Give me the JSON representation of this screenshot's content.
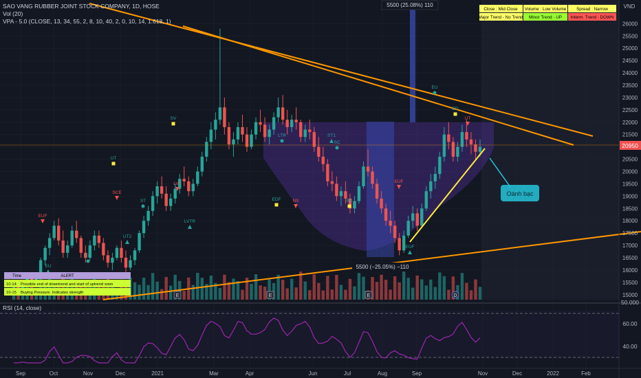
{
  "header": {
    "title": "SAO VANG RUBBER JOINT STOCK COMPANY, 1D, HOSE",
    "vol_label": "Vol (20)",
    "vpa_label": "VPA - 5.0  (CLOSE, 13, 34, 55, 2, 8, 10, 40, 2, 0, 10, 14, 1.618, 1)"
  },
  "currency_label": "VND",
  "price_axis_ticks": [
    "26000",
    "25500",
    "25000",
    "24500",
    "24000",
    "23500",
    "23000",
    "22500",
    "22000",
    "21500",
    "21000",
    "20500",
    "20000",
    "19500",
    "19000",
    "18500",
    "18000",
    "17500",
    "17000",
    "16500",
    "16000",
    "15500",
    "15000"
  ],
  "current_price": "20950",
  "volume_axis_ticks": [
    "50.000"
  ],
  "rsi": {
    "label": "RSI (14, close)",
    "ticks": [
      "60.00",
      "40.00"
    ]
  },
  "time_axis_ticks": [
    "Sep",
    "Oct",
    "Nov",
    "Dec",
    "2021",
    "Mar",
    "Apr",
    "Jun",
    "Jul",
    "Aug",
    "Sep",
    "Nov",
    "Dec",
    "2022",
    "Feb"
  ],
  "measure_top": "5500 (25.08%) 110",
  "measure_bottom": "5500 (−25.05%) −110",
  "callout": "Oánh bạc",
  "legend": [
    {
      "text": "Close : Mid Close",
      "bg": "#ffff66"
    },
    {
      "text": "Volume : Low Volume",
      "bg": "#ffff66"
    },
    {
      "text": "Spread : Narrow",
      "bg": "#ffff66"
    },
    {
      "text": "Major Trend - No Trend",
      "bg": "#ffff66"
    },
    {
      "text": "Minor Trend - UP",
      "bg": "#99ff33"
    },
    {
      "text": "Interm. Trend - DOWN",
      "bg": "#ff5555"
    }
  ],
  "alert": {
    "headers": [
      "Time",
      "ALERT"
    ],
    "rows": [
      {
        "time": "10-14",
        "text": "Possible end of downtrend and start of uptrend soon"
      },
      {
        "time": "10-15",
        "text": "Buying Pressure. Indicates strength"
      }
    ]
  },
  "event_marker": "E",
  "dividend_marker": "D",
  "signals": [
    "EUF",
    "EU",
    "ED",
    "UT",
    "SCE",
    "UT2",
    "ST",
    "SV",
    "LVT",
    "LVTR",
    "LTR",
    "EDF",
    "NS",
    "ST1",
    "SC",
    "BE",
    "EUF"
  ],
  "colors": {
    "bg": "#131722",
    "up": "#26a69a",
    "down": "#ef5350",
    "orange": "#ff9800",
    "yellow": "#ffeb3b",
    "cup": "#7e57c2",
    "rsi": "#9c27b0",
    "teal": "#26c6da"
  },
  "chart_data": {
    "type": "candlestick",
    "y_range": [
      14800,
      26400
    ],
    "candles": [
      [
        15.2,
        15.5,
        15.0,
        15.3
      ],
      [
        15.3,
        15.4,
        15.0,
        15.1
      ],
      [
        15.1,
        15.6,
        15.0,
        15.5
      ],
      [
        15.5,
        15.8,
        15.3,
        15.7
      ],
      [
        15.7,
        15.8,
        15.4,
        15.5
      ],
      [
        15.5,
        15.9,
        15.4,
        15.8
      ],
      [
        15.8,
        16.5,
        15.7,
        16.4
      ],
      [
        16.4,
        17.0,
        16.2,
        16.9
      ],
      [
        16.9,
        17.5,
        16.6,
        17.3
      ],
      [
        17.3,
        18.0,
        17.2,
        17.8
      ],
      [
        17.8,
        18.1,
        17.0,
        17.2
      ],
      [
        17.2,
        17.6,
        16.5,
        16.7
      ],
      [
        16.7,
        17.2,
        16.5,
        17.0
      ],
      [
        17.0,
        17.8,
        16.9,
        17.6
      ],
      [
        17.6,
        18.0,
        17.1,
        17.3
      ],
      [
        17.3,
        17.4,
        16.5,
        16.7
      ],
      [
        16.7,
        17.0,
        16.3,
        16.5
      ],
      [
        16.5,
        17.2,
        16.4,
        17.0
      ],
      [
        17.0,
        17.6,
        16.8,
        17.4
      ],
      [
        17.4,
        17.6,
        16.9,
        17.1
      ],
      [
        17.1,
        17.3,
        16.4,
        16.6
      ],
      [
        16.6,
        16.8,
        16.1,
        16.3
      ],
      [
        16.3,
        16.7,
        16.0,
        16.5
      ],
      [
        16.5,
        17.0,
        16.4,
        16.9
      ],
      [
        16.9,
        17.2,
        16.3,
        16.5
      ],
      [
        16.5,
        16.8,
        15.9,
        16.1
      ],
      [
        16.1,
        16.6,
        16.0,
        16.4
      ],
      [
        16.4,
        16.9,
        16.2,
        16.8
      ],
      [
        16.8,
        17.6,
        16.7,
        17.5
      ],
      [
        17.5,
        18.2,
        17.3,
        18.0
      ],
      [
        18.0,
        18.6,
        17.8,
        18.4
      ],
      [
        18.4,
        19.2,
        18.2,
        19.0
      ],
      [
        19.0,
        19.6,
        18.7,
        19.4
      ],
      [
        19.4,
        19.8,
        18.9,
        19.1
      ],
      [
        19.1,
        19.4,
        18.4,
        18.6
      ],
      [
        18.6,
        19.1,
        18.4,
        18.9
      ],
      [
        18.9,
        19.5,
        18.7,
        19.3
      ],
      [
        19.3,
        19.9,
        19.1,
        19.7
      ],
      [
        19.7,
        20.2,
        19.4,
        19.6
      ],
      [
        19.6,
        19.8,
        19.0,
        19.2
      ],
      [
        19.2,
        19.7,
        19.0,
        19.5
      ],
      [
        19.5,
        20.2,
        19.4,
        20.0
      ],
      [
        20.0,
        20.8,
        19.8,
        20.6
      ],
      [
        20.6,
        21.4,
        20.4,
        21.2
      ],
      [
        21.2,
        22.0,
        20.9,
        21.7
      ],
      [
        21.7,
        22.4,
        21.3,
        22.1
      ],
      [
        22.1,
        25.8,
        21.9,
        22.6
      ],
      [
        22.6,
        23.0,
        21.5,
        21.8
      ],
      [
        21.8,
        22.0,
        20.9,
        21.1
      ],
      [
        21.1,
        21.6,
        20.6,
        21.3
      ],
      [
        21.3,
        22.0,
        21.1,
        21.8
      ],
      [
        21.8,
        22.3,
        21.2,
        21.5
      ],
      [
        21.5,
        21.8,
        20.8,
        21.0
      ],
      [
        21.0,
        21.7,
        20.9,
        21.5
      ],
      [
        21.5,
        22.2,
        21.3,
        22.0
      ],
      [
        22.0,
        22.5,
        21.6,
        21.9
      ],
      [
        21.9,
        22.2,
        21.2,
        21.4
      ],
      [
        21.4,
        21.9,
        21.1,
        21.7
      ],
      [
        21.7,
        22.4,
        21.5,
        22.2
      ],
      [
        22.2,
        23.0,
        22.0,
        22.6
      ],
      [
        22.6,
        23.1,
        21.9,
        22.1
      ],
      [
        22.1,
        22.5,
        21.5,
        21.8
      ],
      [
        21.8,
        22.3,
        21.6,
        22.1
      ],
      [
        22.1,
        22.6,
        21.7,
        22.0
      ],
      [
        22.0,
        22.1,
        21.2,
        21.4
      ],
      [
        21.4,
        21.9,
        21.2,
        21.7
      ],
      [
        21.7,
        22.1,
        21.3,
        21.6
      ],
      [
        21.6,
        21.8,
        20.8,
        21.0
      ],
      [
        21.0,
        21.4,
        20.4,
        20.6
      ],
      [
        20.6,
        21.0,
        20.0,
        20.3
      ],
      [
        20.3,
        20.5,
        19.4,
        19.6
      ],
      [
        19.6,
        20.0,
        19.2,
        19.5
      ],
      [
        19.5,
        19.8,
        18.8,
        19.0
      ],
      [
        19.0,
        19.4,
        18.6,
        19.2
      ],
      [
        19.2,
        19.6,
        18.7,
        18.9
      ],
      [
        18.9,
        19.1,
        18.3,
        18.5
      ],
      [
        18.5,
        19.0,
        18.3,
        18.8
      ],
      [
        18.8,
        19.6,
        18.7,
        19.4
      ],
      [
        19.4,
        20.4,
        19.3,
        20.2
      ],
      [
        20.2,
        20.9,
        19.8,
        20.0
      ],
      [
        20.0,
        20.2,
        19.3,
        19.5
      ],
      [
        19.5,
        19.7,
        18.7,
        18.9
      ],
      [
        18.9,
        19.2,
        18.3,
        18.5
      ],
      [
        18.5,
        18.7,
        17.8,
        18.0
      ],
      [
        18.0,
        18.4,
        17.5,
        17.8
      ],
      [
        17.8,
        18.0,
        17.1,
        17.3
      ],
      [
        17.3,
        17.5,
        16.6,
        16.8
      ],
      [
        16.8,
        17.6,
        16.7,
        17.4
      ],
      [
        17.4,
        18.2,
        17.3,
        18.0
      ],
      [
        18.0,
        18.6,
        17.7,
        18.3
      ],
      [
        18.3,
        18.5,
        17.6,
        17.8
      ],
      [
        17.8,
        18.7,
        17.7,
        18.5
      ],
      [
        18.5,
        19.4,
        18.4,
        19.2
      ],
      [
        19.2,
        19.9,
        18.9,
        19.6
      ],
      [
        19.6,
        20.2,
        19.3,
        19.9
      ],
      [
        19.9,
        20.8,
        19.7,
        20.6
      ],
      [
        20.6,
        21.8,
        20.4,
        21.5
      ],
      [
        21.5,
        22.0,
        20.9,
        21.2
      ],
      [
        21.2,
        21.4,
        20.4,
        20.6
      ],
      [
        20.6,
        21.2,
        20.4,
        21.0
      ],
      [
        21.0,
        21.9,
        20.8,
        21.6
      ],
      [
        21.6,
        22.1,
        21.0,
        21.3
      ],
      [
        21.3,
        21.6,
        20.7,
        21.1
      ],
      [
        21.1,
        21.3,
        20.5,
        20.8
      ],
      [
        20.8,
        21.3,
        20.6,
        21.0
      ]
    ]
  }
}
